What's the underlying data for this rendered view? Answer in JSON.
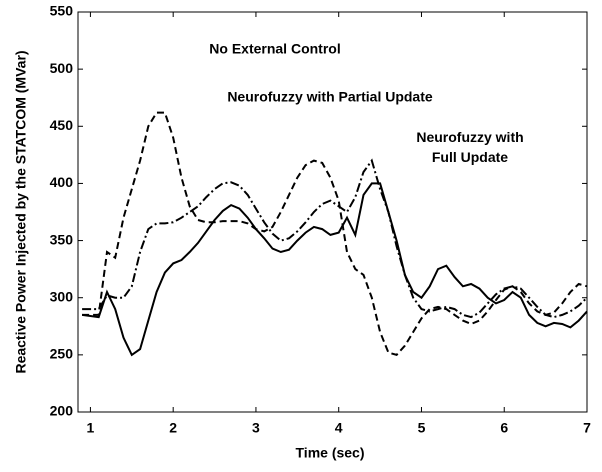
{
  "chart_data": {
    "type": "line",
    "xlabel": "Time (sec)",
    "ylabel": "Reactive Power Injected by the STATCOM (MVar)",
    "x": [
      0.9,
      1.0,
      1.1,
      1.2,
      1.3,
      1.4,
      1.5,
      1.6,
      1.7,
      1.8,
      1.9,
      2.0,
      2.1,
      2.2,
      2.3,
      2.4,
      2.5,
      2.6,
      2.7,
      2.8,
      2.9,
      3.0,
      3.1,
      3.2,
      3.3,
      3.4,
      3.5,
      3.6,
      3.7,
      3.8,
      3.9,
      4.0,
      4.1,
      4.2,
      4.3,
      4.4,
      4.5,
      4.6,
      4.7,
      4.8,
      4.9,
      5.0,
      5.1,
      5.2,
      5.3,
      5.4,
      5.5,
      5.6,
      5.7,
      5.8,
      5.9,
      6.0,
      6.1,
      6.2,
      6.3,
      6.4,
      6.5,
      6.6,
      6.7,
      6.8,
      6.9,
      7.0
    ],
    "series": [
      {
        "name": "No External Control",
        "color": "#000000",
        "style": "dashed",
        "values": [
          285,
          285,
          285,
          340,
          335,
          370,
          395,
          420,
          450,
          462,
          462,
          440,
          405,
          380,
          368,
          366,
          366,
          367,
          367,
          367,
          365,
          360,
          358,
          362,
          375,
          390,
          405,
          416,
          420,
          418,
          405,
          385,
          340,
          325,
          320,
          300,
          270,
          252,
          250,
          258,
          270,
          282,
          290,
          292,
          290,
          285,
          280,
          277,
          280,
          288,
          298,
          307,
          310,
          305,
          295,
          288,
          285,
          287,
          295,
          305,
          312,
          310
        ]
      },
      {
        "name": "Neurofuzzy with Partial Update",
        "color": "#000000",
        "style": "dashdot",
        "values": [
          290,
          290,
          290,
          302,
          300,
          300,
          310,
          340,
          360,
          365,
          365,
          366,
          370,
          375,
          380,
          388,
          395,
          400,
          401,
          398,
          390,
          378,
          366,
          356,
          350,
          352,
          358,
          366,
          375,
          382,
          385,
          380,
          375,
          388,
          410,
          420,
          395,
          375,
          345,
          320,
          300,
          290,
          288,
          290,
          292,
          290,
          285,
          283,
          287,
          295,
          303,
          308,
          310,
          308,
          300,
          292,
          285,
          283,
          285,
          288,
          293,
          300
        ]
      },
      {
        "name": "Neurofuzzy with Full Update",
        "color": "#000000",
        "style": "solid",
        "values": [
          285,
          284,
          283,
          305,
          290,
          265,
          250,
          255,
          280,
          305,
          322,
          330,
          333,
          340,
          348,
          358,
          368,
          376,
          381,
          378,
          370,
          360,
          352,
          343,
          340,
          342,
          350,
          357,
          362,
          360,
          355,
          357,
          370,
          355,
          390,
          400,
          400,
          375,
          350,
          320,
          305,
          300,
          310,
          325,
          328,
          318,
          310,
          312,
          308,
          300,
          295,
          298,
          305,
          300,
          285,
          278,
          275,
          278,
          277,
          274,
          280,
          288
        ]
      }
    ],
    "xlim": [
      0.85,
      7
    ],
    "ylim": [
      200,
      550
    ],
    "xticks": [
      1,
      2,
      3,
      4,
      5,
      6,
      7
    ],
    "yticks": [
      200,
      250,
      300,
      350,
      400,
      450,
      500,
      550
    ]
  }
}
